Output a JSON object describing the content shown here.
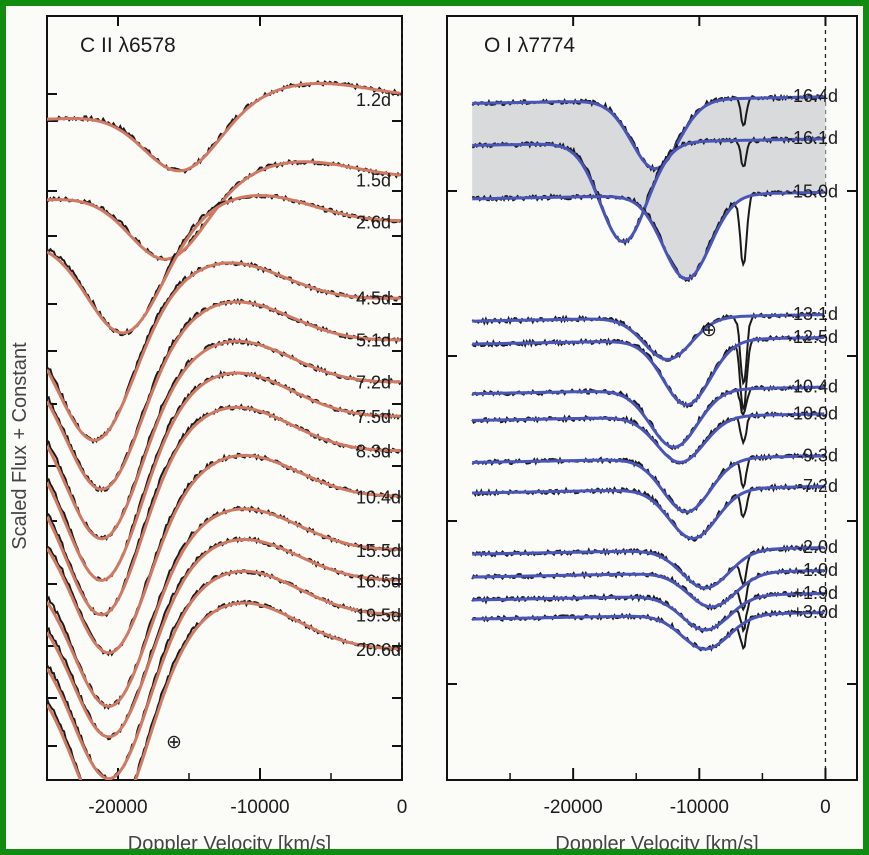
{
  "figure": {
    "ylabel": "Scaled Flux + Constant",
    "border_color": "#118c11"
  },
  "chart_data": [
    {
      "type": "line",
      "title": "C II λ6578",
      "xlabel": "Doppler Velocity [km/s]",
      "ylabel": "Scaled Flux + Constant",
      "xlim": [
        -25000,
        0
      ],
      "xticks": [
        -20000,
        -10000,
        0
      ],
      "xtick_labels": [
        "-20000",
        "-10000",
        "0"
      ],
      "zero_line": true,
      "telluric_symbol": "⊕",
      "series_colors": {
        "observed": "#1a1a1a",
        "model": "#d07a64"
      },
      "series": [
        {
          "epoch": "1.2d",
          "level": 8.9,
          "min_velocity": -15500,
          "depth": 0.8
        },
        {
          "epoch": "1.5d",
          "level": 7.85,
          "min_velocity": -16500,
          "depth": 0.9
        },
        {
          "epoch": "2.6d",
          "level": 7.3,
          "min_velocity": -19500,
          "depth": 1.3
        },
        {
          "epoch": "4.5d",
          "level": 6.3,
          "min_velocity": -21500,
          "depth": 1.7
        },
        {
          "epoch": "5.1d",
          "level": 5.75,
          "min_velocity": -21000,
          "depth": 1.8
        },
        {
          "epoch": "7.2d",
          "level": 5.2,
          "min_velocity": -21000,
          "depth": 1.9
        },
        {
          "epoch": "7.5d",
          "level": 4.75,
          "min_velocity": -21000,
          "depth": 2.0
        },
        {
          "epoch": "8.3d",
          "level": 4.3,
          "min_velocity": -21000,
          "depth": 2.0
        },
        {
          "epoch": "10.4d",
          "level": 3.7,
          "min_velocity": -20500,
          "depth": 1.9
        },
        {
          "epoch": "15.5d",
          "level": 3.0,
          "min_velocity": -20500,
          "depth": 1.9
        },
        {
          "epoch": "16.5d",
          "level": 2.6,
          "min_velocity": -20500,
          "depth": 1.9
        },
        {
          "epoch": "19.5d",
          "level": 2.15,
          "min_velocity": -20500,
          "depth": 2.0
        },
        {
          "epoch": "20.6d",
          "level": 1.7,
          "min_velocity": -20500,
          "depth": 2.1
        }
      ]
    },
    {
      "type": "line",
      "title": "O I λ7774",
      "xlabel": "Doppler Velocity [km/s]",
      "xlim": [
        -30000,
        2500
      ],
      "xticks": [
        -20000,
        -10000,
        0
      ],
      "xtick_labels": [
        "-20000",
        "-10000",
        "0"
      ],
      "zero_line": true,
      "telluric_symbol": "⊕",
      "shaded_band": {
        "epochs": [
          "-16.4d",
          "-16.1d",
          "-15.0d"
        ],
        "color": "#d9dadc"
      },
      "series_colors": {
        "observed": "#1a1a1a",
        "model": "#4a55b8"
      },
      "series": [
        {
          "epoch": "-16.4d",
          "level": 8.95,
          "min_velocity": -13500,
          "depth": 0.9
        },
        {
          "epoch": "-16.1d",
          "level": 8.4,
          "min_velocity": -16000,
          "depth": 1.3
        },
        {
          "epoch": "-15.0d",
          "level": 7.7,
          "min_velocity": -11000,
          "depth": 1.1
        },
        {
          "epoch": "-13.1d",
          "level": 6.1,
          "min_velocity": -12500,
          "depth": 0.55
        },
        {
          "epoch": "-12.5d",
          "level": 5.8,
          "min_velocity": -11000,
          "depth": 0.85
        },
        {
          "epoch": "-10.4d",
          "level": 5.15,
          "min_velocity": -12000,
          "depth": 0.75
        },
        {
          "epoch": "-10.0d",
          "level": 4.8,
          "min_velocity": -11500,
          "depth": 0.6
        },
        {
          "epoch": "-9.3d",
          "level": 4.25,
          "min_velocity": -11000,
          "depth": 0.7
        },
        {
          "epoch": "-7.2d",
          "level": 3.85,
          "min_velocity": -10500,
          "depth": 0.65
        },
        {
          "epoch": "-2.0d",
          "level": 3.05,
          "min_velocity": -9500,
          "depth": 0.5
        },
        {
          "epoch": "-1.0d",
          "level": 2.75,
          "min_velocity": -9000,
          "depth": 0.45
        },
        {
          "epoch": "+1.9d",
          "level": 2.45,
          "min_velocity": -9500,
          "depth": 0.45
        },
        {
          "epoch": "+3.0d",
          "level": 2.2,
          "min_velocity": -9500,
          "depth": 0.45
        }
      ]
    }
  ]
}
